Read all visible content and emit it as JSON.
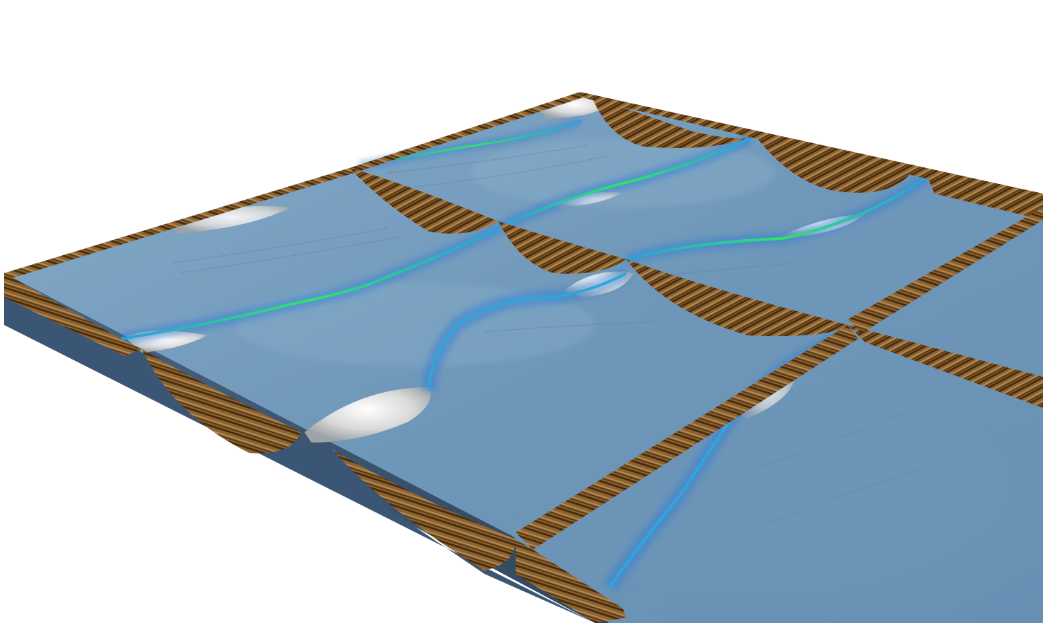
{
  "scene": {
    "background": "#ffffff",
    "colors": {
      "surface_light": "#7ea6c6",
      "surface_mid": "#6a93b6",
      "surface_dark": "#5a82a5",
      "side_face": "#3a5470",
      "side_face_dark": "#2f455d",
      "wood_light": "#a07a44",
      "wood_dark": "#5c3a16",
      "wood_stripe": "#3f2408",
      "highlight_white": "#e8e8e6",
      "highlight_grey": "#b9bcbf",
      "fault_blue": "#2f7fd6",
      "fault_cyan": "#34d3c8",
      "fault_green": "#2ee36a"
    },
    "icons": {
      "render": "3d-terrain-render",
      "ridges": "wood-ridge-band",
      "faults": "fault-glow-line",
      "peaks": "snow-peak"
    }
  }
}
